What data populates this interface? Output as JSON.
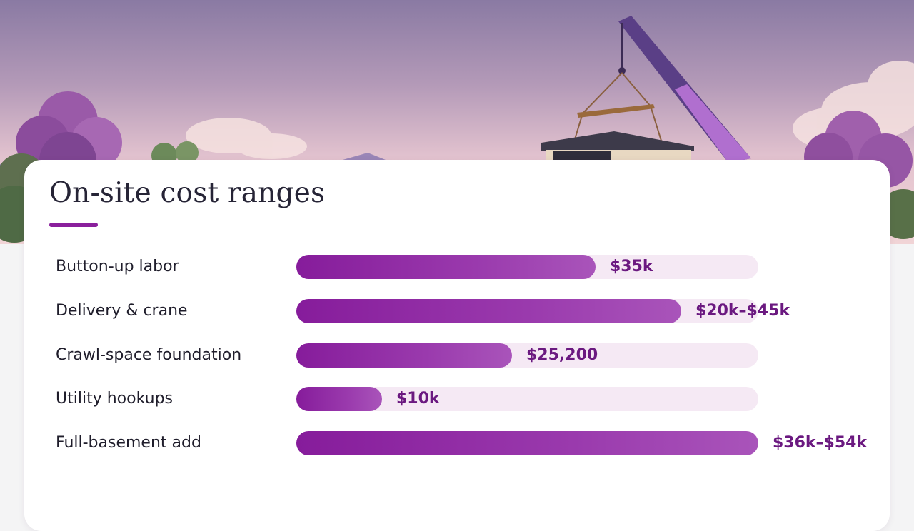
{
  "title": "On-site cost ranges",
  "colors": {
    "accent": "#8a1f9c",
    "bar_start": "#861c9b",
    "bar_end": "#a954ba",
    "track": "#f5e9f4",
    "value_text": "#6b1980"
  },
  "chart_data": {
    "type": "bar",
    "orientation": "horizontal",
    "title": "On-site cost ranges",
    "xlim": [
      0,
      54000
    ],
    "categories": [
      "Button-up labor",
      "Delivery & crane",
      "Crawl-space foundation",
      "Utility hookups",
      "Full-basement add"
    ],
    "values": [
      35000,
      45000,
      25200,
      10000,
      54000
    ],
    "ranges": [
      null,
      [
        20000,
        45000
      ],
      null,
      null,
      [
        36000,
        54000
      ]
    ],
    "value_labels": [
      "$35k",
      "$20k–$45k",
      "$25,200",
      "$10k",
      "$36k–$54k"
    ]
  }
}
